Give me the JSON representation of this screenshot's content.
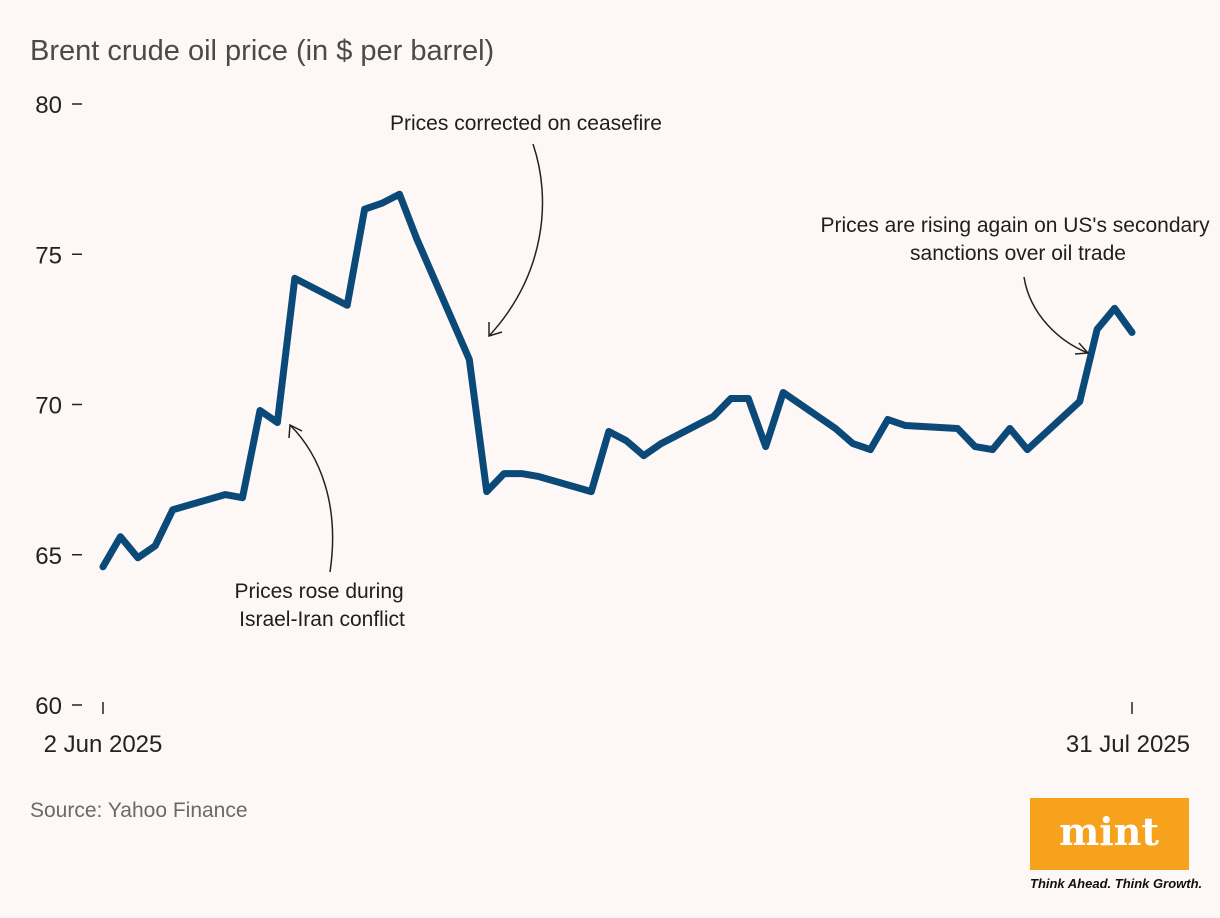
{
  "chart_data": {
    "type": "line",
    "title": "Brent crude oil price (in $ per barrel)",
    "source": "Source: Yahoo Finance",
    "ylim": [
      60,
      80
    ],
    "yticks": [
      80,
      75,
      70,
      65,
      60
    ],
    "x_tick_labels": [
      "2 Jun 2025",
      "31 Jul 2025"
    ],
    "grid": false,
    "series": [
      {
        "color": "#0b4a78",
        "x": [
          "2025-06-02",
          "2025-06-03",
          "2025-06-04",
          "2025-06-05",
          "2025-06-06",
          "2025-06-09",
          "2025-06-10",
          "2025-06-11",
          "2025-06-12",
          "2025-06-13",
          "2025-06-16",
          "2025-06-17",
          "2025-06-18",
          "2025-06-19",
          "2025-06-20",
          "2025-06-23",
          "2025-06-24",
          "2025-06-25",
          "2025-06-26",
          "2025-06-27",
          "2025-06-30",
          "2025-07-01",
          "2025-07-02",
          "2025-07-03",
          "2025-07-04",
          "2025-07-07",
          "2025-07-08",
          "2025-07-09",
          "2025-07-10",
          "2025-07-11",
          "2025-07-14",
          "2025-07-15",
          "2025-07-16",
          "2025-07-17",
          "2025-07-18",
          "2025-07-21",
          "2025-07-22",
          "2025-07-23",
          "2025-07-24",
          "2025-07-25",
          "2025-07-28",
          "2025-07-29",
          "2025-07-30",
          "2025-07-31"
        ],
        "values": [
          64.6,
          65.6,
          64.9,
          65.3,
          66.5,
          67.0,
          66.9,
          69.8,
          69.4,
          74.2,
          73.3,
          76.5,
          76.7,
          77.0,
          75.5,
          71.5,
          67.1,
          67.7,
          67.7,
          67.6,
          67.1,
          69.1,
          68.8,
          68.3,
          68.7,
          69.6,
          70.2,
          70.2,
          68.6,
          70.4,
          69.2,
          68.7,
          68.5,
          69.5,
          69.3,
          69.2,
          68.6,
          68.5,
          69.2,
          68.5,
          70.1,
          72.5,
          73.2,
          72.4
        ]
      }
    ],
    "annotations": [
      {
        "lines": [
          "Prices rose during",
          "Israel-Iran conflict"
        ]
      },
      {
        "lines": [
          "Prices corrected on ceasefire"
        ]
      },
      {
        "lines": [
          "Prices are rising again on US's secondary",
          "sanctions over oil trade"
        ]
      }
    ]
  },
  "branding": {
    "logo_text": "mint",
    "tagline": "Think Ahead. Think Growth.",
    "logo_color": "#f7a21c"
  }
}
